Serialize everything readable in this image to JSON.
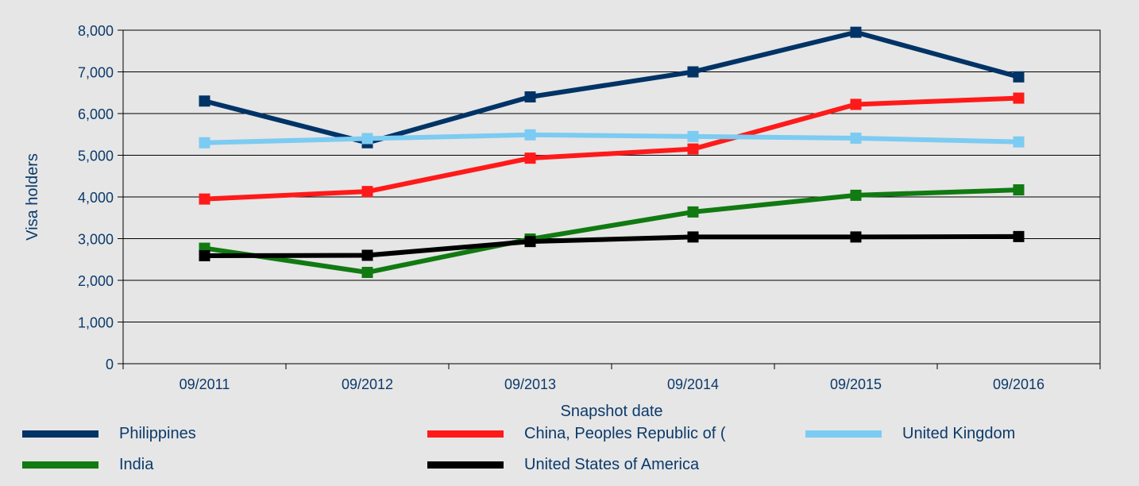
{
  "colors": {
    "background": "#e6e6e6",
    "text": "#0b3a6b",
    "grid": "#000000"
  },
  "chart_data": {
    "type": "line",
    "categories": [
      "09/2011",
      "09/2012",
      "09/2013",
      "09/2014",
      "09/2015",
      "09/2016"
    ],
    "xlabel": "Snapshot date",
    "ylabel": "Visa holders",
    "ylim": [
      0,
      8000
    ],
    "yticks": [
      0,
      1000,
      2000,
      3000,
      4000,
      5000,
      6000,
      7000,
      8000
    ],
    "ytick_labels": [
      "0",
      "1,000",
      "2,000",
      "3,000",
      "4,000",
      "5,000",
      "6,000",
      "7,000",
      "8,000"
    ],
    "grid": true,
    "legend_position": "bottom",
    "series": [
      {
        "name": "Philippines",
        "color": "#003366",
        "values": [
          6300,
          5300,
          6400,
          7000,
          7950,
          6880
        ]
      },
      {
        "name": "China, Peoples Republic of (",
        "color": "#ff1a1a",
        "values": [
          3950,
          4130,
          4930,
          5150,
          6220,
          6370
        ]
      },
      {
        "name": "United Kingdom",
        "color": "#7ccbf2",
        "values": [
          5300,
          5400,
          5490,
          5450,
          5410,
          5320
        ]
      },
      {
        "name": "India",
        "color": "#117a11",
        "values": [
          2770,
          2190,
          2990,
          3640,
          4040,
          4170
        ]
      },
      {
        "name": "United States of America",
        "color": "#000000",
        "values": [
          2590,
          2600,
          2930,
          3040,
          3040,
          3050
        ]
      }
    ]
  }
}
